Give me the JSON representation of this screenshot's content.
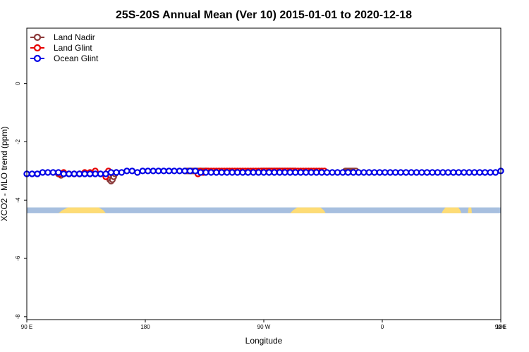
{
  "chart_data": {
    "type": "line",
    "title": "25S-20S Annual Mean (Ver 10)   2015-01-01 to 2020-12-18",
    "xlabel": "Longitude",
    "ylabel": "XCO2 - MLO trend (ppm)",
    "xlim": [
      90,
      450
    ],
    "ylim": [
      -8.1,
      1.9
    ],
    "x_ticks": [
      {
        "value": 90,
        "label": "90 E"
      },
      {
        "value": 180,
        "label": "180"
      },
      {
        "value": 270,
        "label": "90 W"
      },
      {
        "value": 360,
        "label": "0"
      },
      {
        "value": 450,
        "label": "90 E"
      },
      {
        "value": 540,
        "label": "180"
      }
    ],
    "y_ticks": [
      {
        "value": 0,
        "label": "0"
      },
      {
        "value": -2,
        "label": "-2"
      },
      {
        "value": -4,
        "label": "-4"
      },
      {
        "value": -6,
        "label": "-6"
      },
      {
        "value": -8,
        "label": "-8"
      }
    ],
    "legend_position": "top-left",
    "grid": false,
    "land_band": {
      "ocean_color": "#a7bfdf",
      "land_color": "#fedc75",
      "y_range": [
        -4.25,
        -4.45
      ],
      "land_segments": [
        [
          114,
          150
        ],
        [
          290,
          317
        ],
        [
          405,
          420
        ],
        [
          425,
          428
        ],
        [
          487,
          527
        ]
      ]
    },
    "series": [
      {
        "name": "Land Nadir",
        "color": "#8b3a3a",
        "x": [
          114,
          116,
          152,
          153,
          154,
          155,
          156,
          157,
          158,
          210,
          211,
          212,
          213,
          214,
          215,
          216,
          217,
          218,
          219,
          220,
          221,
          222,
          223,
          224,
          225,
          226,
          227,
          268,
          269,
          270,
          271,
          272,
          273,
          274,
          275,
          276,
          277,
          278,
          279,
          280,
          281,
          282,
          283,
          284,
          285,
          286,
          287,
          288,
          289,
          290,
          291,
          292,
          293,
          294,
          332,
          333,
          334,
          335,
          336,
          337,
          338,
          339,
          340
        ],
        "y": [
          -3.1,
          -3.15,
          -3.2,
          -3.3,
          -3.35,
          -3.3,
          -3.2,
          -3.1,
          -3.05,
          -3.0,
          -3.0,
          -3.0,
          -3.0,
          -3.0,
          -3.0,
          -3.0,
          -3.0,
          -3.0,
          -3.0,
          -3.0,
          -3.0,
          -3.0,
          -3.0,
          -3.0,
          -3.0,
          -3.0,
          -3.0,
          -3.0,
          -3.0,
          -3.0,
          -3.0,
          -3.0,
          -3.0,
          -3.0,
          -3.0,
          -3.0,
          -3.0,
          -3.0,
          -3.0,
          -3.0,
          -3.0,
          -3.0,
          -3.0,
          -3.0,
          -3.0,
          -3.0,
          -3.0,
          -3.0,
          -3.0,
          -3.0,
          -3.0,
          -3.0,
          -3.0,
          -3.0,
          -3.0,
          -3.0,
          -3.0,
          -3.0,
          -3.0,
          -3.0,
          -3.0,
          -3.0,
          -3.0
        ]
      },
      {
        "name": "Land Glint",
        "color": "#e60000",
        "x": [
          115,
          118,
          122,
          126,
          130,
          134,
          138,
          142,
          150,
          152,
          220,
          222,
          224,
          226,
          228,
          230,
          232,
          234,
          236,
          238,
          240,
          242,
          244,
          246,
          248,
          250,
          252,
          254,
          256,
          258,
          260,
          262,
          264,
          266,
          268,
          270,
          272,
          274,
          276,
          278,
          280,
          282,
          284,
          286,
          288,
          290,
          292,
          294,
          296,
          298,
          300,
          302,
          304,
          306,
          308,
          310,
          312,
          314,
          316
        ],
        "y": [
          -3.1,
          -3.05,
          -3.1,
          -3.1,
          -3.1,
          -3.05,
          -3.05,
          -3.0,
          -3.2,
          -3.0,
          -3.1,
          -3.0,
          -3.05,
          -3.0,
          -3.0,
          -3.0,
          -3.0,
          -3.0,
          -3.0,
          -3.0,
          -3.0,
          -3.0,
          -3.0,
          -3.0,
          -3.0,
          -3.0,
          -3.0,
          -3.0,
          -3.0,
          -3.0,
          -3.0,
          -3.0,
          -3.0,
          -3.0,
          -3.0,
          -3.0,
          -3.0,
          -3.0,
          -3.0,
          -3.0,
          -3.0,
          -3.0,
          -3.0,
          -3.0,
          -3.0,
          -3.0,
          -3.0,
          -3.0,
          -3.0,
          -3.0,
          -3.0,
          -3.0,
          -3.0,
          -3.0,
          -3.0,
          -3.0,
          -3.0,
          -3.0,
          -3.0
        ]
      },
      {
        "name": "Ocean Glint",
        "color": "#0000e6",
        "x": [
          90,
          94,
          98,
          102,
          106,
          110,
          114,
          118,
          122,
          126,
          130,
          134,
          138,
          142,
          146,
          150,
          154,
          158,
          162,
          166,
          170,
          174,
          178,
          182,
          186,
          190,
          194,
          198,
          202,
          206,
          210,
          214,
          218,
          222,
          226,
          230,
          234,
          238,
          242,
          246,
          250,
          254,
          258,
          262,
          266,
          270,
          274,
          278,
          282,
          286,
          290,
          294,
          298,
          302,
          306,
          310,
          314,
          318,
          322,
          326,
          330,
          334,
          338,
          342,
          346,
          350,
          354,
          358,
          362,
          366,
          370,
          374,
          378,
          382,
          386,
          390,
          394,
          398,
          402,
          406,
          410,
          414,
          418,
          422,
          426,
          430,
          434,
          438,
          442,
          446,
          450
        ],
        "y": [
          -3.1,
          -3.1,
          -3.1,
          -3.05,
          -3.05,
          -3.05,
          -3.05,
          -3.1,
          -3.1,
          -3.1,
          -3.1,
          -3.1,
          -3.1,
          -3.1,
          -3.1,
          -3.1,
          -3.05,
          -3.05,
          -3.05,
          -3.0,
          -3.0,
          -3.05,
          -3.0,
          -3.0,
          -3.0,
          -3.0,
          -3.0,
          -3.0,
          -3.0,
          -3.0,
          -3.0,
          -3.0,
          -3.0,
          -3.05,
          -3.05,
          -3.05,
          -3.05,
          -3.05,
          -3.05,
          -3.05,
          -3.05,
          -3.05,
          -3.05,
          -3.05,
          -3.05,
          -3.05,
          -3.05,
          -3.05,
          -3.05,
          -3.05,
          -3.05,
          -3.05,
          -3.05,
          -3.05,
          -3.05,
          -3.05,
          -3.05,
          -3.05,
          -3.05,
          -3.05,
          -3.05,
          -3.05,
          -3.05,
          -3.05,
          -3.05,
          -3.05,
          -3.05,
          -3.05,
          -3.05,
          -3.05,
          -3.05,
          -3.05,
          -3.05,
          -3.05,
          -3.05,
          -3.05,
          -3.05,
          -3.05,
          -3.05,
          -3.05,
          -3.05,
          -3.05,
          -3.05,
          -3.05,
          -3.05,
          -3.05,
          -3.05,
          -3.05,
          -3.05,
          -3.05,
          -3.0
        ]
      }
    ]
  }
}
